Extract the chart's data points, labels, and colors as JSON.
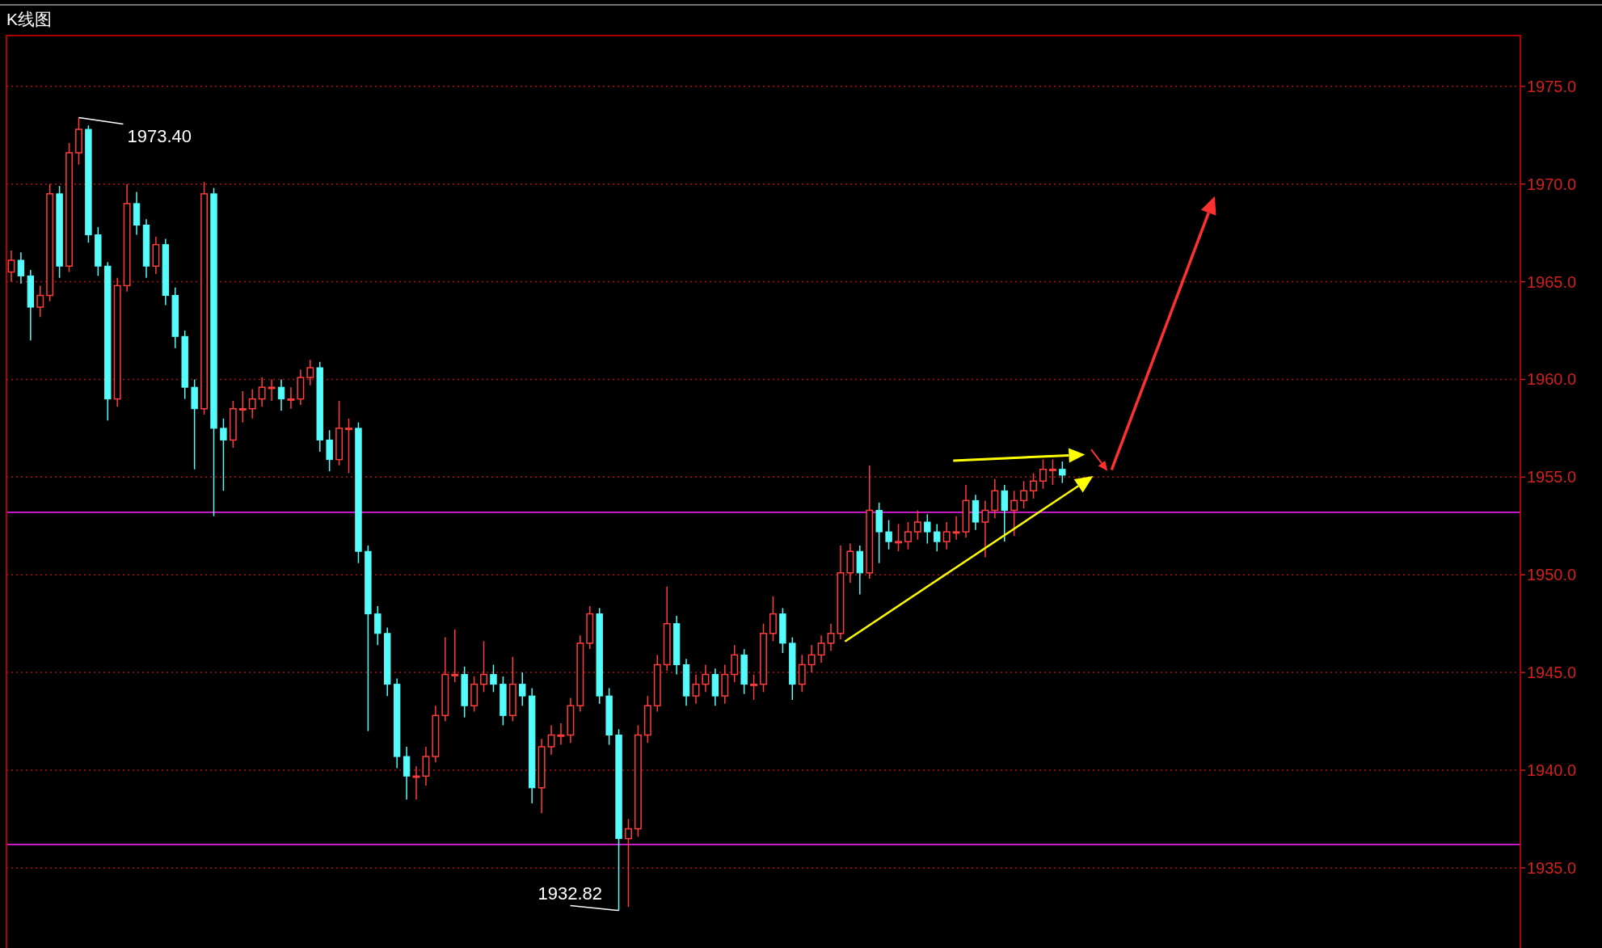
{
  "chart_data": {
    "type": "candlestick",
    "title": "K线图",
    "categories": [
      null,
      null,
      null,
      null,
      null,
      null,
      null,
      null,
      null,
      null,
      null,
      null,
      null,
      null,
      null,
      null,
      null,
      null,
      null,
      null,
      null,
      null,
      null,
      null,
      null,
      null,
      null,
      null,
      null,
      null,
      null,
      null,
      null,
      null,
      null,
      null,
      null,
      null,
      null,
      null,
      null,
      null,
      null,
      null,
      null,
      null,
      null,
      null,
      null,
      null,
      null,
      null,
      null,
      null,
      null,
      null,
      null,
      null,
      null,
      null,
      null,
      null,
      null,
      null,
      null,
      null,
      null,
      null,
      null,
      null,
      null,
      null,
      null,
      null,
      null,
      null,
      null,
      null,
      null,
      null,
      null,
      null,
      null,
      null,
      null,
      null,
      null,
      null,
      null,
      null,
      null,
      null,
      null,
      null,
      null,
      null,
      null,
      null,
      null,
      null,
      null,
      null,
      null,
      null,
      null,
      null,
      null,
      null,
      null,
      null,
      null,
      null,
      null,
      null,
      null,
      null,
      null,
      null,
      null,
      null,
      null,
      null,
      null,
      null,
      null,
      null,
      null,
      null,
      null,
      null,
      null,
      null,
      null,
      null,
      null,
      null,
      null,
      null,
      null,
      null,
      null,
      null,
      null,
      null,
      null,
      null,
      null,
      null,
      null,
      null,
      null,
      null,
      null,
      null,
      null,
      null,
      null
    ],
    "ohlc": [
      [
        1965.5,
        1966.6,
        1965.0,
        1966.1
      ],
      [
        1966.1,
        1966.5,
        1964.9,
        1965.3
      ],
      [
        1965.3,
        1965.6,
        1962.0,
        1963.7
      ],
      [
        1963.7,
        1964.8,
        1963.2,
        1964.3
      ],
      [
        1964.3,
        1970.0,
        1964.0,
        1969.5
      ],
      [
        1969.5,
        1969.9,
        1965.2,
        1965.8
      ],
      [
        1965.8,
        1972.1,
        1965.5,
        1971.6
      ],
      [
        1971.6,
        1973.4,
        1971.0,
        1972.8
      ],
      [
        1972.8,
        1973.0,
        1967.0,
        1967.4
      ],
      [
        1967.4,
        1967.8,
        1965.3,
        1965.8
      ],
      [
        1965.8,
        1966.0,
        1957.9,
        1959.0
      ],
      [
        1959.0,
        1965.2,
        1958.6,
        1964.8
      ],
      [
        1964.8,
        1970.0,
        1964.5,
        1969.0
      ],
      [
        1969.0,
        1969.6,
        1967.4,
        1967.9
      ],
      [
        1967.9,
        1968.2,
        1965.2,
        1965.8
      ],
      [
        1965.8,
        1967.3,
        1965.4,
        1966.9
      ],
      [
        1966.9,
        1967.2,
        1963.8,
        1964.3
      ],
      [
        1964.3,
        1964.7,
        1961.6,
        1962.2
      ],
      [
        1962.2,
        1962.5,
        1959.0,
        1959.6
      ],
      [
        1959.6,
        1960.0,
        1955.4,
        1958.5
      ],
      [
        1958.5,
        1970.1,
        1958.2,
        1969.5
      ],
      [
        1969.5,
        1969.8,
        1953.0,
        1957.5
      ],
      [
        1957.5,
        1958.0,
        1954.3,
        1956.9
      ],
      [
        1956.9,
        1958.9,
        1956.5,
        1958.5
      ],
      [
        1958.5,
        1959.4,
        1957.8,
        1958.5
      ],
      [
        1958.5,
        1959.5,
        1958.0,
        1959.0
      ],
      [
        1959.0,
        1960.1,
        1958.6,
        1959.6
      ],
      [
        1959.6,
        1960.0,
        1958.9,
        1959.6
      ],
      [
        1959.6,
        1960.0,
        1958.4,
        1959.0
      ],
      [
        1959.0,
        1959.6,
        1958.5,
        1959.0
      ],
      [
        1959.0,
        1960.5,
        1958.7,
        1960.1
      ],
      [
        1960.1,
        1961.0,
        1959.7,
        1960.6
      ],
      [
        1960.6,
        1960.9,
        1956.3,
        1956.9
      ],
      [
        1956.9,
        1957.4,
        1955.3,
        1955.9
      ],
      [
        1955.9,
        1958.9,
        1955.6,
        1957.5
      ],
      [
        1957.5,
        1958.0,
        1955.2,
        1957.5
      ],
      [
        1957.5,
        1957.8,
        1950.6,
        1951.2
      ],
      [
        1951.2,
        1951.5,
        1942.0,
        1948.0
      ],
      [
        1948.0,
        1948.4,
        1946.4,
        1947.0
      ],
      [
        1947.0,
        1947.3,
        1943.8,
        1944.4
      ],
      [
        1944.4,
        1944.7,
        1940.1,
        1940.7
      ],
      [
        1940.7,
        1941.2,
        1938.5,
        1939.7
      ],
      [
        1939.7,
        1940.2,
        1938.5,
        1939.7
      ],
      [
        1939.7,
        1941.2,
        1939.2,
        1940.7
      ],
      [
        1940.7,
        1943.3,
        1940.4,
        1942.8
      ],
      [
        1942.8,
        1946.8,
        1942.5,
        1944.9
      ],
      [
        1944.9,
        1947.2,
        1944.5,
        1944.9
      ],
      [
        1944.9,
        1945.3,
        1942.7,
        1943.3
      ],
      [
        1943.3,
        1944.8,
        1943.0,
        1944.4
      ],
      [
        1944.4,
        1946.6,
        1944.0,
        1944.9
      ],
      [
        1944.9,
        1945.4,
        1944.0,
        1944.4
      ],
      [
        1944.4,
        1944.8,
        1942.3,
        1942.8
      ],
      [
        1942.8,
        1945.8,
        1942.5,
        1944.4
      ],
      [
        1944.4,
        1945.0,
        1943.3,
        1943.8
      ],
      [
        1943.8,
        1944.2,
        1938.3,
        1939.1
      ],
      [
        1939.1,
        1941.6,
        1937.8,
        1941.2
      ],
      [
        1941.2,
        1942.3,
        1940.8,
        1941.8
      ],
      [
        1941.8,
        1942.4,
        1941.3,
        1941.8
      ],
      [
        1941.8,
        1943.7,
        1941.4,
        1943.3
      ],
      [
        1943.3,
        1946.9,
        1943.0,
        1946.5
      ],
      [
        1946.5,
        1948.4,
        1946.2,
        1948.0
      ],
      [
        1948.0,
        1948.3,
        1943.4,
        1943.8
      ],
      [
        1943.8,
        1944.2,
        1941.3,
        1941.8
      ],
      [
        1941.8,
        1942.1,
        1932.82,
        1936.5
      ],
      [
        1936.5,
        1937.5,
        1933.0,
        1937.0
      ],
      [
        1937.0,
        1942.3,
        1936.6,
        1941.8
      ],
      [
        1941.8,
        1943.8,
        1941.4,
        1943.3
      ],
      [
        1943.3,
        1945.9,
        1943.0,
        1945.4
      ],
      [
        1945.4,
        1949.4,
        1945.1,
        1947.5
      ],
      [
        1947.5,
        1947.9,
        1944.9,
        1945.4
      ],
      [
        1945.4,
        1945.7,
        1943.3,
        1943.8
      ],
      [
        1943.8,
        1944.9,
        1943.4,
        1944.4
      ],
      [
        1944.4,
        1945.4,
        1944.0,
        1944.9
      ],
      [
        1944.9,
        1945.2,
        1943.3,
        1943.8
      ],
      [
        1943.8,
        1945.4,
        1943.4,
        1944.9
      ],
      [
        1944.9,
        1946.4,
        1944.5,
        1945.9
      ],
      [
        1945.9,
        1946.2,
        1943.9,
        1944.4
      ],
      [
        1944.4,
        1944.9,
        1943.6,
        1944.4
      ],
      [
        1944.4,
        1947.5,
        1944.0,
        1947.0
      ],
      [
        1947.0,
        1948.9,
        1946.6,
        1948.0
      ],
      [
        1948.0,
        1948.3,
        1946.0,
        1946.5
      ],
      [
        1946.5,
        1946.8,
        1943.6,
        1944.4
      ],
      [
        1944.4,
        1945.9,
        1944.0,
        1945.4
      ],
      [
        1945.4,
        1946.4,
        1945.0,
        1945.9
      ],
      [
        1945.9,
        1946.9,
        1945.5,
        1946.5
      ],
      [
        1946.5,
        1947.5,
        1946.1,
        1947.0
      ],
      [
        1947.0,
        1951.5,
        1946.7,
        1950.1
      ],
      [
        1950.1,
        1951.6,
        1949.6,
        1951.2
      ],
      [
        1951.2,
        1951.5,
        1949.0,
        1950.1
      ],
      [
        1950.1,
        1955.6,
        1949.8,
        1953.3
      ],
      [
        1953.3,
        1953.7,
        1950.6,
        1952.2
      ],
      [
        1952.2,
        1952.8,
        1951.3,
        1951.7
      ],
      [
        1951.7,
        1952.6,
        1951.2,
        1951.7
      ],
      [
        1951.7,
        1952.7,
        1951.3,
        1952.2
      ],
      [
        1952.2,
        1953.3,
        1951.8,
        1952.7
      ],
      [
        1952.7,
        1953.1,
        1951.6,
        1952.2
      ],
      [
        1952.2,
        1952.6,
        1951.2,
        1951.7
      ],
      [
        1951.7,
        1952.7,
        1951.3,
        1952.2
      ],
      [
        1952.2,
        1953.0,
        1951.8,
        1952.2
      ],
      [
        1952.2,
        1954.6,
        1951.9,
        1953.8
      ],
      [
        1953.8,
        1954.1,
        1952.3,
        1952.7
      ],
      [
        1952.7,
        1953.8,
        1950.9,
        1953.3
      ],
      [
        1953.3,
        1954.9,
        1952.9,
        1954.3
      ],
      [
        1954.3,
        1954.6,
        1951.7,
        1953.3
      ],
      [
        1953.3,
        1954.3,
        1952.0,
        1953.8
      ],
      [
        1953.8,
        1954.8,
        1953.4,
        1954.3
      ],
      [
        1954.3,
        1955.2,
        1953.9,
        1954.8
      ],
      [
        1954.8,
        1955.9,
        1954.4,
        1955.4
      ],
      [
        1955.4,
        1955.9,
        1954.6,
        1955.4
      ],
      [
        1955.4,
        1955.8,
        1954.7,
        1955.1
      ],
      null,
      null,
      null,
      null,
      null,
      null,
      null,
      null,
      null,
      null,
      null,
      null,
      null,
      null,
      null,
      null,
      null,
      null,
      null,
      null,
      null,
      null,
      null,
      null,
      null,
      null,
      null,
      null,
      null,
      null,
      null,
      null,
      null,
      null,
      null,
      null,
      null,
      null,
      null,
      null,
      null,
      null,
      null,
      null,
      null,
      null,
      null
    ],
    "ylim": [
      1930.9,
      1977.6
    ],
    "yticks": [
      {
        "value": 1935,
        "label": "1935.0"
      },
      {
        "value": 1940,
        "label": "1940.0"
      },
      {
        "value": 1945,
        "label": "1945.0"
      },
      {
        "value": 1950,
        "label": "1950.0"
      },
      {
        "value": 1955,
        "label": "1955.0"
      },
      {
        "value": 1960,
        "label": "1960.0"
      },
      {
        "value": 1965,
        "label": "1965.0"
      },
      {
        "value": 1970,
        "label": "1970.0"
      },
      {
        "value": 1975,
        "label": "1975.0"
      }
    ],
    "grid": "y",
    "tick_labels": "y",
    "ref_lines": [
      {
        "axis": "y",
        "value": 1953.2,
        "color": "#e020e0",
        "line_style": "solid"
      },
      {
        "axis": "y",
        "value": 1936.2,
        "color": "#e020e0",
        "line_style": "solid"
      }
    ],
    "annotations": [
      "1973.40",
      "1932.82"
    ]
  }
}
